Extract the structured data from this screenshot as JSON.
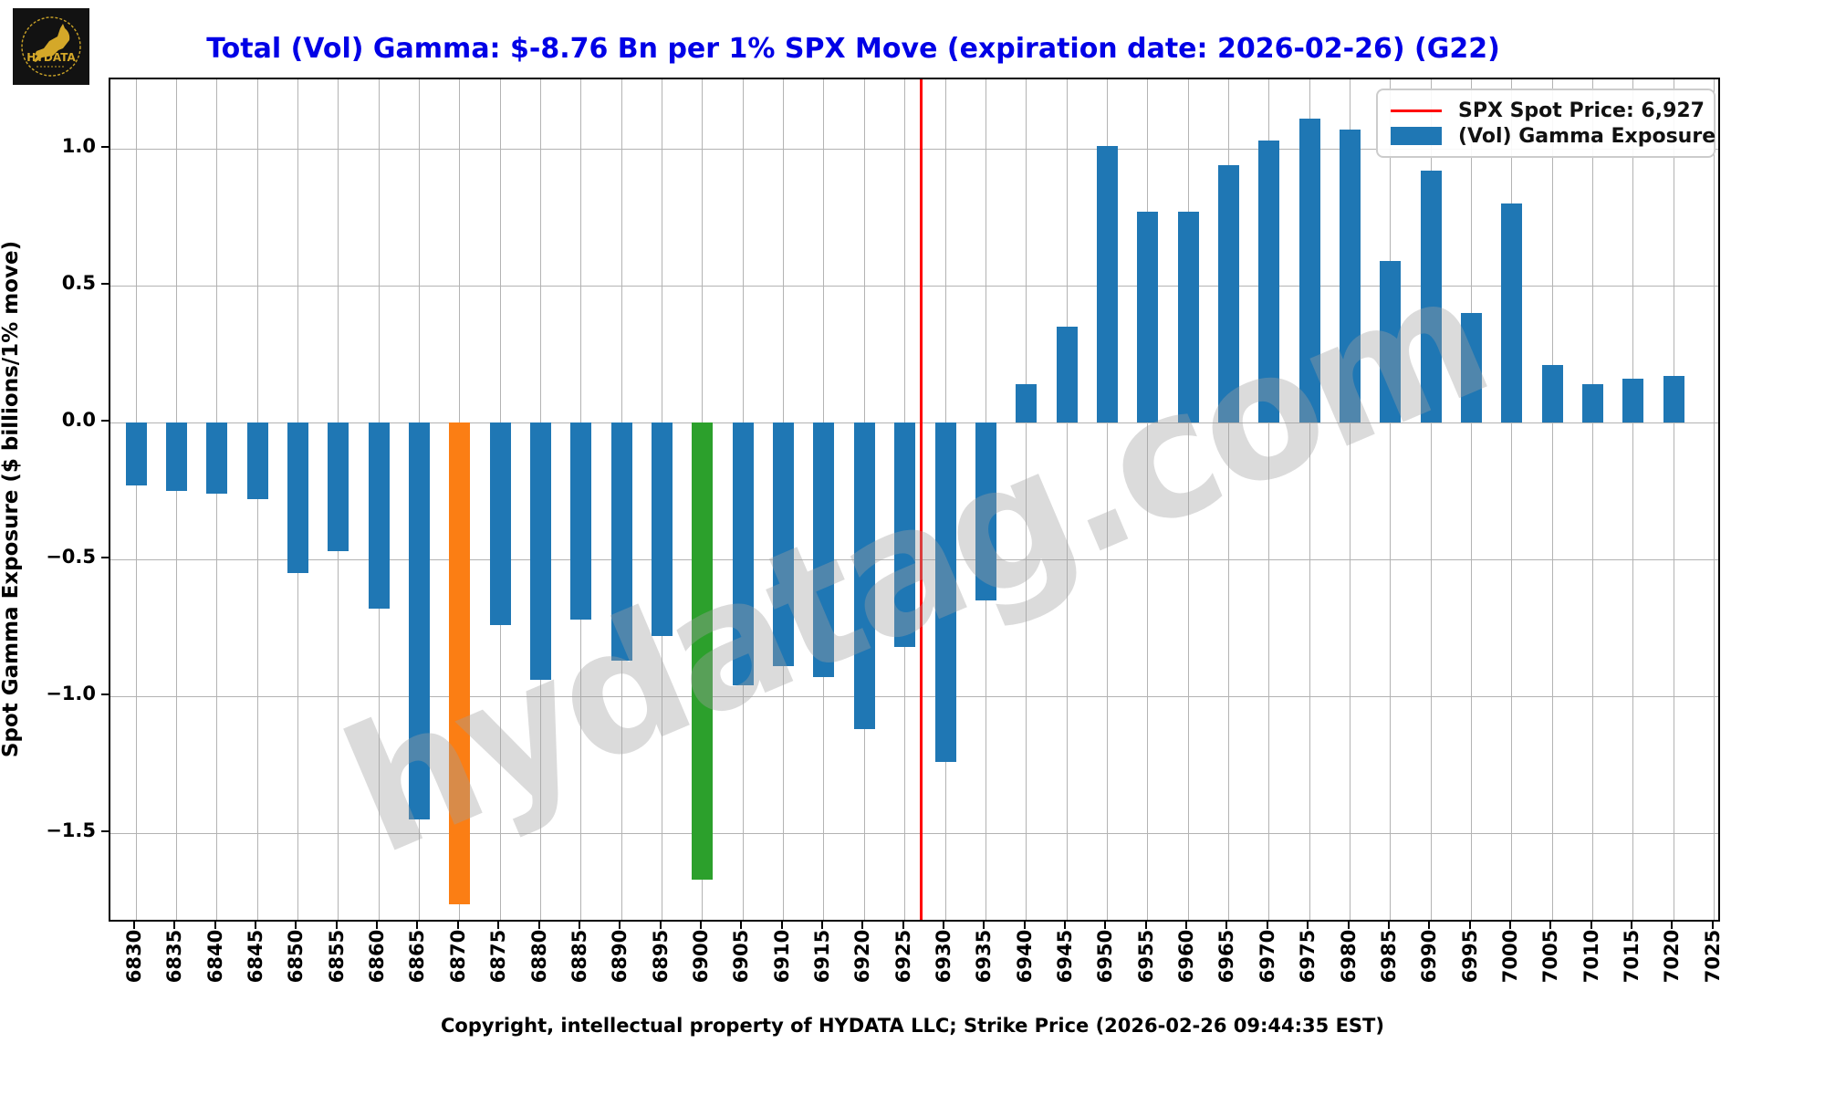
{
  "header": {
    "title": "Total (Vol) Gamma: $-8.76 Bn per 1% SPX Move (expiration date: 2026-02-26) (G22)"
  },
  "logo": {
    "brand": "HYDATA"
  },
  "watermark": "hydatag.com",
  "legend": {
    "spot_label": "SPX Spot Price: 6,927",
    "gamma_label": "(Vol) Gamma Exposure"
  },
  "footer": {
    "caption": "Copyright, intellectual property of HYDATA LLC; Strike Price (2026-02-26 09:44:35 EST)"
  },
  "chart_data": {
    "type": "bar",
    "title": "Total (Vol) Gamma: $-8.76 Bn per 1% SPX Move (expiration date: 2026-02-26) (G22)",
    "ylabel": "Spot Gamma Exposure ($ billions/1% move)",
    "xlabel": "Copyright, intellectual property of HYDATA LLC; Strike Price (2026-02-26 09:44:35 EST)",
    "categories": [
      6830,
      6835,
      6840,
      6845,
      6850,
      6855,
      6860,
      6865,
      6870,
      6875,
      6880,
      6885,
      6890,
      6895,
      6900,
      6905,
      6910,
      6915,
      6920,
      6925,
      6930,
      6935,
      6940,
      6945,
      6950,
      6955,
      6960,
      6965,
      6970,
      6975,
      6980,
      6985,
      6990,
      6995,
      7000,
      7005,
      7010,
      7015,
      7020,
      7025
    ],
    "values": [
      -0.23,
      -0.25,
      -0.26,
      -0.28,
      -0.55,
      -0.47,
      -0.68,
      -1.45,
      -1.76,
      -0.74,
      -0.94,
      -0.72,
      -0.87,
      -0.78,
      -1.67,
      -0.96,
      -0.89,
      -0.93,
      -1.12,
      -0.82,
      -1.24,
      -0.65,
      0.14,
      0.35,
      1.01,
      0.77,
      0.77,
      0.94,
      1.03,
      1.11,
      1.07,
      0.59,
      0.92,
      0.4,
      0.8,
      0.21,
      0.14,
      0.16,
      0.17,
      0.0
    ],
    "series_name": "(Vol) Gamma Exposure",
    "bar_color_default": "#1f77b4",
    "bar_color_highlights": {
      "6870": "#fb7e14",
      "6900": "#2ca02c"
    },
    "spot_price": 6927,
    "spot_line_color": "#ff0000",
    "ytick_values": [
      1.0,
      0.5,
      0.0,
      -0.5,
      -1.0,
      -1.5
    ],
    "ytick_labels": [
      "1.0",
      "0.5",
      "0.0",
      "−0.5",
      "−1.0",
      "−1.5"
    ],
    "ylim": [
      -1.83,
      1.25
    ],
    "grid": true,
    "legend_position": "upper right"
  }
}
